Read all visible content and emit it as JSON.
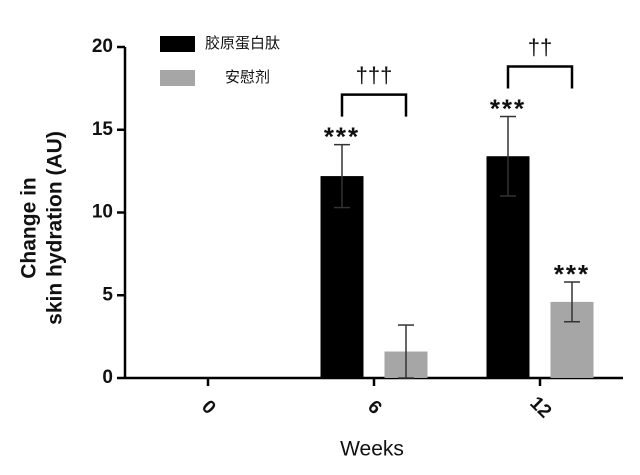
{
  "chart_data": {
    "type": "bar",
    "y_label": [
      "Change in",
      "skin hydration (AU)"
    ],
    "x_label": "Weeks",
    "categories": [
      "0",
      "6",
      "12"
    ],
    "series": [
      {
        "name": "胶原蛋白肽",
        "color": "#000000",
        "values": [
          0,
          12.2,
          13.4
        ],
        "errors": [
          0,
          1.9,
          2.4
        ],
        "annotations": [
          null,
          "***",
          "***"
        ]
      },
      {
        "name": "安慰剂",
        "color": "#a6a6a6",
        "values": [
          0,
          1.6,
          4.6
        ],
        "errors": [
          0,
          1.6,
          1.2
        ],
        "annotations": [
          null,
          null,
          "***"
        ]
      }
    ],
    "comparisons": [
      {
        "category": "6",
        "label": "†††"
      },
      {
        "category": "12",
        "label": "††"
      }
    ],
    "ylim": [
      0,
      20
    ],
    "yticks": [
      0,
      5,
      10,
      15,
      20
    ]
  }
}
